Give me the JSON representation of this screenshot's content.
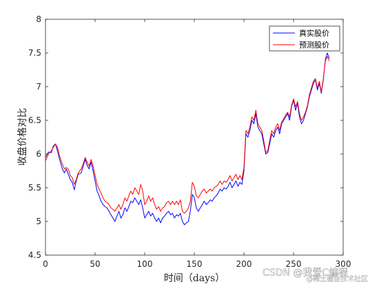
{
  "chart_data": {
    "type": "line",
    "xlabel": "时间（days）",
    "ylabel": "收盘价格对比",
    "xlim": [
      0,
      300
    ],
    "ylim": [
      4.5,
      8
    ],
    "x_ticks": [
      "0",
      "50",
      "100",
      "150",
      "200",
      "250",
      "300"
    ],
    "y_ticks": [
      "4.5",
      "5",
      "5.5",
      "6",
      "6.5",
      "7",
      "7.5",
      "8"
    ],
    "grid": false,
    "legend_position": "top-right",
    "series": [
      {
        "name": "真实股价",
        "color": "#0000ff",
        "points": [
          [
            0,
            5.95
          ],
          [
            3,
            6.03
          ],
          [
            6,
            6.02
          ],
          [
            8,
            6.12
          ],
          [
            10,
            6.15
          ],
          [
            12,
            6.05
          ],
          [
            14,
            5.93
          ],
          [
            17,
            5.78
          ],
          [
            19,
            5.72
          ],
          [
            21,
            5.78
          ],
          [
            23,
            5.7
          ],
          [
            25,
            5.62
          ],
          [
            27,
            5.58
          ],
          [
            29,
            5.47
          ],
          [
            31,
            5.6
          ],
          [
            33,
            5.7
          ],
          [
            36,
            5.72
          ],
          [
            38,
            5.82
          ],
          [
            40,
            5.92
          ],
          [
            42,
            5.83
          ],
          [
            44,
            5.78
          ],
          [
            46,
            5.88
          ],
          [
            48,
            5.75
          ],
          [
            50,
            5.6
          ],
          [
            52,
            5.45
          ],
          [
            54,
            5.38
          ],
          [
            56,
            5.3
          ],
          [
            58,
            5.25
          ],
          [
            60,
            5.22
          ],
          [
            62,
            5.2
          ],
          [
            64,
            5.15
          ],
          [
            66,
            5.1
          ],
          [
            68,
            5.05
          ],
          [
            70,
            5.0
          ],
          [
            72,
            5.08
          ],
          [
            74,
            5.15
          ],
          [
            76,
            5.05
          ],
          [
            78,
            5.1
          ],
          [
            80,
            5.2
          ],
          [
            82,
            5.15
          ],
          [
            84,
            5.22
          ],
          [
            86,
            5.3
          ],
          [
            88,
            5.28
          ],
          [
            90,
            5.35
          ],
          [
            92,
            5.3
          ],
          [
            94,
            5.25
          ],
          [
            96,
            5.32
          ],
          [
            98,
            5.2
          ],
          [
            100,
            5.05
          ],
          [
            102,
            5.1
          ],
          [
            104,
            5.15
          ],
          [
            106,
            5.08
          ],
          [
            108,
            5.12
          ],
          [
            110,
            5.05
          ],
          [
            112,
            5.0
          ],
          [
            114,
            5.05
          ],
          [
            116,
            4.98
          ],
          [
            118,
            5.05
          ],
          [
            120,
            5.08
          ],
          [
            122,
            5.12
          ],
          [
            124,
            5.15
          ],
          [
            126,
            5.1
          ],
          [
            128,
            5.12
          ],
          [
            130,
            5.05
          ],
          [
            132,
            5.1
          ],
          [
            134,
            5.08
          ],
          [
            136,
            5.12
          ],
          [
            138,
            5.0
          ],
          [
            140,
            4.95
          ],
          [
            142,
            4.98
          ],
          [
            144,
            5.0
          ],
          [
            146,
            5.15
          ],
          [
            148,
            5.4
          ],
          [
            150,
            5.35
          ],
          [
            152,
            5.2
          ],
          [
            154,
            5.15
          ],
          [
            156,
            5.2
          ],
          [
            158,
            5.25
          ],
          [
            160,
            5.3
          ],
          [
            162,
            5.25
          ],
          [
            164,
            5.28
          ],
          [
            166,
            5.32
          ],
          [
            168,
            5.3
          ],
          [
            170,
            5.35
          ],
          [
            172,
            5.38
          ],
          [
            174,
            5.42
          ],
          [
            176,
            5.48
          ],
          [
            178,
            5.45
          ],
          [
            180,
            5.5
          ],
          [
            182,
            5.48
          ],
          [
            184,
            5.52
          ],
          [
            186,
            5.58
          ],
          [
            188,
            5.5
          ],
          [
            190,
            5.55
          ],
          [
            192,
            5.6
          ],
          [
            194,
            5.52
          ],
          [
            196,
            5.58
          ],
          [
            198,
            5.55
          ],
          [
            200,
            5.75
          ],
          [
            202,
            6.3
          ],
          [
            204,
            6.25
          ],
          [
            206,
            6.35
          ],
          [
            208,
            6.5
          ],
          [
            210,
            6.45
          ],
          [
            212,
            6.6
          ],
          [
            214,
            6.4
          ],
          [
            216,
            6.35
          ],
          [
            218,
            6.3
          ],
          [
            220,
            6.15
          ],
          [
            222,
            6.0
          ],
          [
            224,
            6.02
          ],
          [
            226,
            6.15
          ],
          [
            228,
            6.3
          ],
          [
            230,
            6.25
          ],
          [
            232,
            6.35
          ],
          [
            234,
            6.4
          ],
          [
            236,
            6.3
          ],
          [
            238,
            6.45
          ],
          [
            240,
            6.5
          ],
          [
            242,
            6.55
          ],
          [
            244,
            6.6
          ],
          [
            246,
            6.5
          ],
          [
            248,
            6.7
          ],
          [
            250,
            6.8
          ],
          [
            252,
            6.65
          ],
          [
            254,
            6.75
          ],
          [
            256,
            6.55
          ],
          [
            258,
            6.45
          ],
          [
            260,
            6.5
          ],
          [
            262,
            6.6
          ],
          [
            264,
            6.7
          ],
          [
            266,
            6.85
          ],
          [
            268,
            6.95
          ],
          [
            270,
            7.05
          ],
          [
            272,
            7.1
          ],
          [
            274,
            6.95
          ],
          [
            276,
            7.05
          ],
          [
            278,
            6.9
          ],
          [
            280,
            7.1
          ],
          [
            282,
            7.4
          ],
          [
            284,
            7.5
          ],
          [
            286,
            7.42
          ]
        ]
      },
      {
        "name": "预测股价",
        "color": "#ff0000",
        "points": [
          [
            0,
            5.9
          ],
          [
            3,
            6.0
          ],
          [
            6,
            6.05
          ],
          [
            8,
            6.1
          ],
          [
            10,
            6.15
          ],
          [
            12,
            6.1
          ],
          [
            14,
            5.98
          ],
          [
            17,
            5.85
          ],
          [
            19,
            5.78
          ],
          [
            21,
            5.8
          ],
          [
            23,
            5.78
          ],
          [
            25,
            5.68
          ],
          [
            27,
            5.65
          ],
          [
            29,
            5.55
          ],
          [
            31,
            5.62
          ],
          [
            33,
            5.72
          ],
          [
            36,
            5.78
          ],
          [
            38,
            5.85
          ],
          [
            40,
            5.95
          ],
          [
            42,
            5.88
          ],
          [
            44,
            5.82
          ],
          [
            46,
            5.92
          ],
          [
            48,
            5.82
          ],
          [
            50,
            5.68
          ],
          [
            52,
            5.55
          ],
          [
            54,
            5.48
          ],
          [
            56,
            5.42
          ],
          [
            58,
            5.35
          ],
          [
            60,
            5.3
          ],
          [
            62,
            5.28
          ],
          [
            64,
            5.25
          ],
          [
            66,
            5.2
          ],
          [
            68,
            5.18
          ],
          [
            70,
            5.15
          ],
          [
            72,
            5.2
          ],
          [
            74,
            5.25
          ],
          [
            76,
            5.18
          ],
          [
            78,
            5.25
          ],
          [
            80,
            5.35
          ],
          [
            82,
            5.3
          ],
          [
            84,
            5.38
          ],
          [
            86,
            5.45
          ],
          [
            88,
            5.4
          ],
          [
            90,
            5.5
          ],
          [
            92,
            5.45
          ],
          [
            94,
            5.4
          ],
          [
            96,
            5.55
          ],
          [
            98,
            5.45
          ],
          [
            100,
            5.25
          ],
          [
            102,
            5.3
          ],
          [
            104,
            5.38
          ],
          [
            106,
            5.3
          ],
          [
            108,
            5.35
          ],
          [
            110,
            5.25
          ],
          [
            112,
            5.18
          ],
          [
            114,
            5.22
          ],
          [
            116,
            5.15
          ],
          [
            118,
            5.2
          ],
          [
            120,
            5.22
          ],
          [
            122,
            5.28
          ],
          [
            124,
            5.3
          ],
          [
            126,
            5.25
          ],
          [
            128,
            5.3
          ],
          [
            130,
            5.25
          ],
          [
            132,
            5.3
          ],
          [
            134,
            5.25
          ],
          [
            136,
            5.32
          ],
          [
            138,
            5.15
          ],
          [
            140,
            5.12
          ],
          [
            142,
            5.15
          ],
          [
            144,
            5.2
          ],
          [
            146,
            5.3
          ],
          [
            148,
            5.58
          ],
          [
            150,
            5.52
          ],
          [
            152,
            5.38
          ],
          [
            154,
            5.35
          ],
          [
            156,
            5.4
          ],
          [
            158,
            5.45
          ],
          [
            160,
            5.48
          ],
          [
            162,
            5.42
          ],
          [
            164,
            5.45
          ],
          [
            166,
            5.48
          ],
          [
            168,
            5.45
          ],
          [
            170,
            5.5
          ],
          [
            172,
            5.52
          ],
          [
            174,
            5.55
          ],
          [
            176,
            5.6
          ],
          [
            178,
            5.55
          ],
          [
            180,
            5.6
          ],
          [
            182,
            5.58
          ],
          [
            184,
            5.62
          ],
          [
            186,
            5.68
          ],
          [
            188,
            5.6
          ],
          [
            190,
            5.65
          ],
          [
            192,
            5.7
          ],
          [
            194,
            5.62
          ],
          [
            196,
            5.68
          ],
          [
            198,
            5.62
          ],
          [
            200,
            5.8
          ],
          [
            202,
            6.35
          ],
          [
            204,
            6.3
          ],
          [
            206,
            6.4
          ],
          [
            208,
            6.55
          ],
          [
            210,
            6.5
          ],
          [
            212,
            6.65
          ],
          [
            214,
            6.45
          ],
          [
            216,
            6.4
          ],
          [
            218,
            6.35
          ],
          [
            220,
            6.2
          ],
          [
            222,
            6.02
          ],
          [
            224,
            6.05
          ],
          [
            226,
            6.2
          ],
          [
            228,
            6.35
          ],
          [
            230,
            6.3
          ],
          [
            232,
            6.4
          ],
          [
            234,
            6.45
          ],
          [
            236,
            6.35
          ],
          [
            238,
            6.48
          ],
          [
            240,
            6.52
          ],
          [
            242,
            6.58
          ],
          [
            244,
            6.62
          ],
          [
            246,
            6.55
          ],
          [
            248,
            6.72
          ],
          [
            250,
            6.82
          ],
          [
            252,
            6.7
          ],
          [
            254,
            6.78
          ],
          [
            256,
            6.6
          ],
          [
            258,
            6.5
          ],
          [
            260,
            6.55
          ],
          [
            262,
            6.62
          ],
          [
            264,
            6.72
          ],
          [
            266,
            6.88
          ],
          [
            268,
            6.98
          ],
          [
            270,
            7.08
          ],
          [
            272,
            7.12
          ],
          [
            274,
            6.98
          ],
          [
            276,
            7.08
          ],
          [
            278,
            6.92
          ],
          [
            280,
            7.12
          ],
          [
            282,
            7.38
          ],
          [
            284,
            7.45
          ],
          [
            286,
            7.38
          ]
        ]
      }
    ]
  },
  "watermark": {
    "line1": "CSDN @我爱C编程",
    "line2": "@稀土掘金技术社区"
  }
}
